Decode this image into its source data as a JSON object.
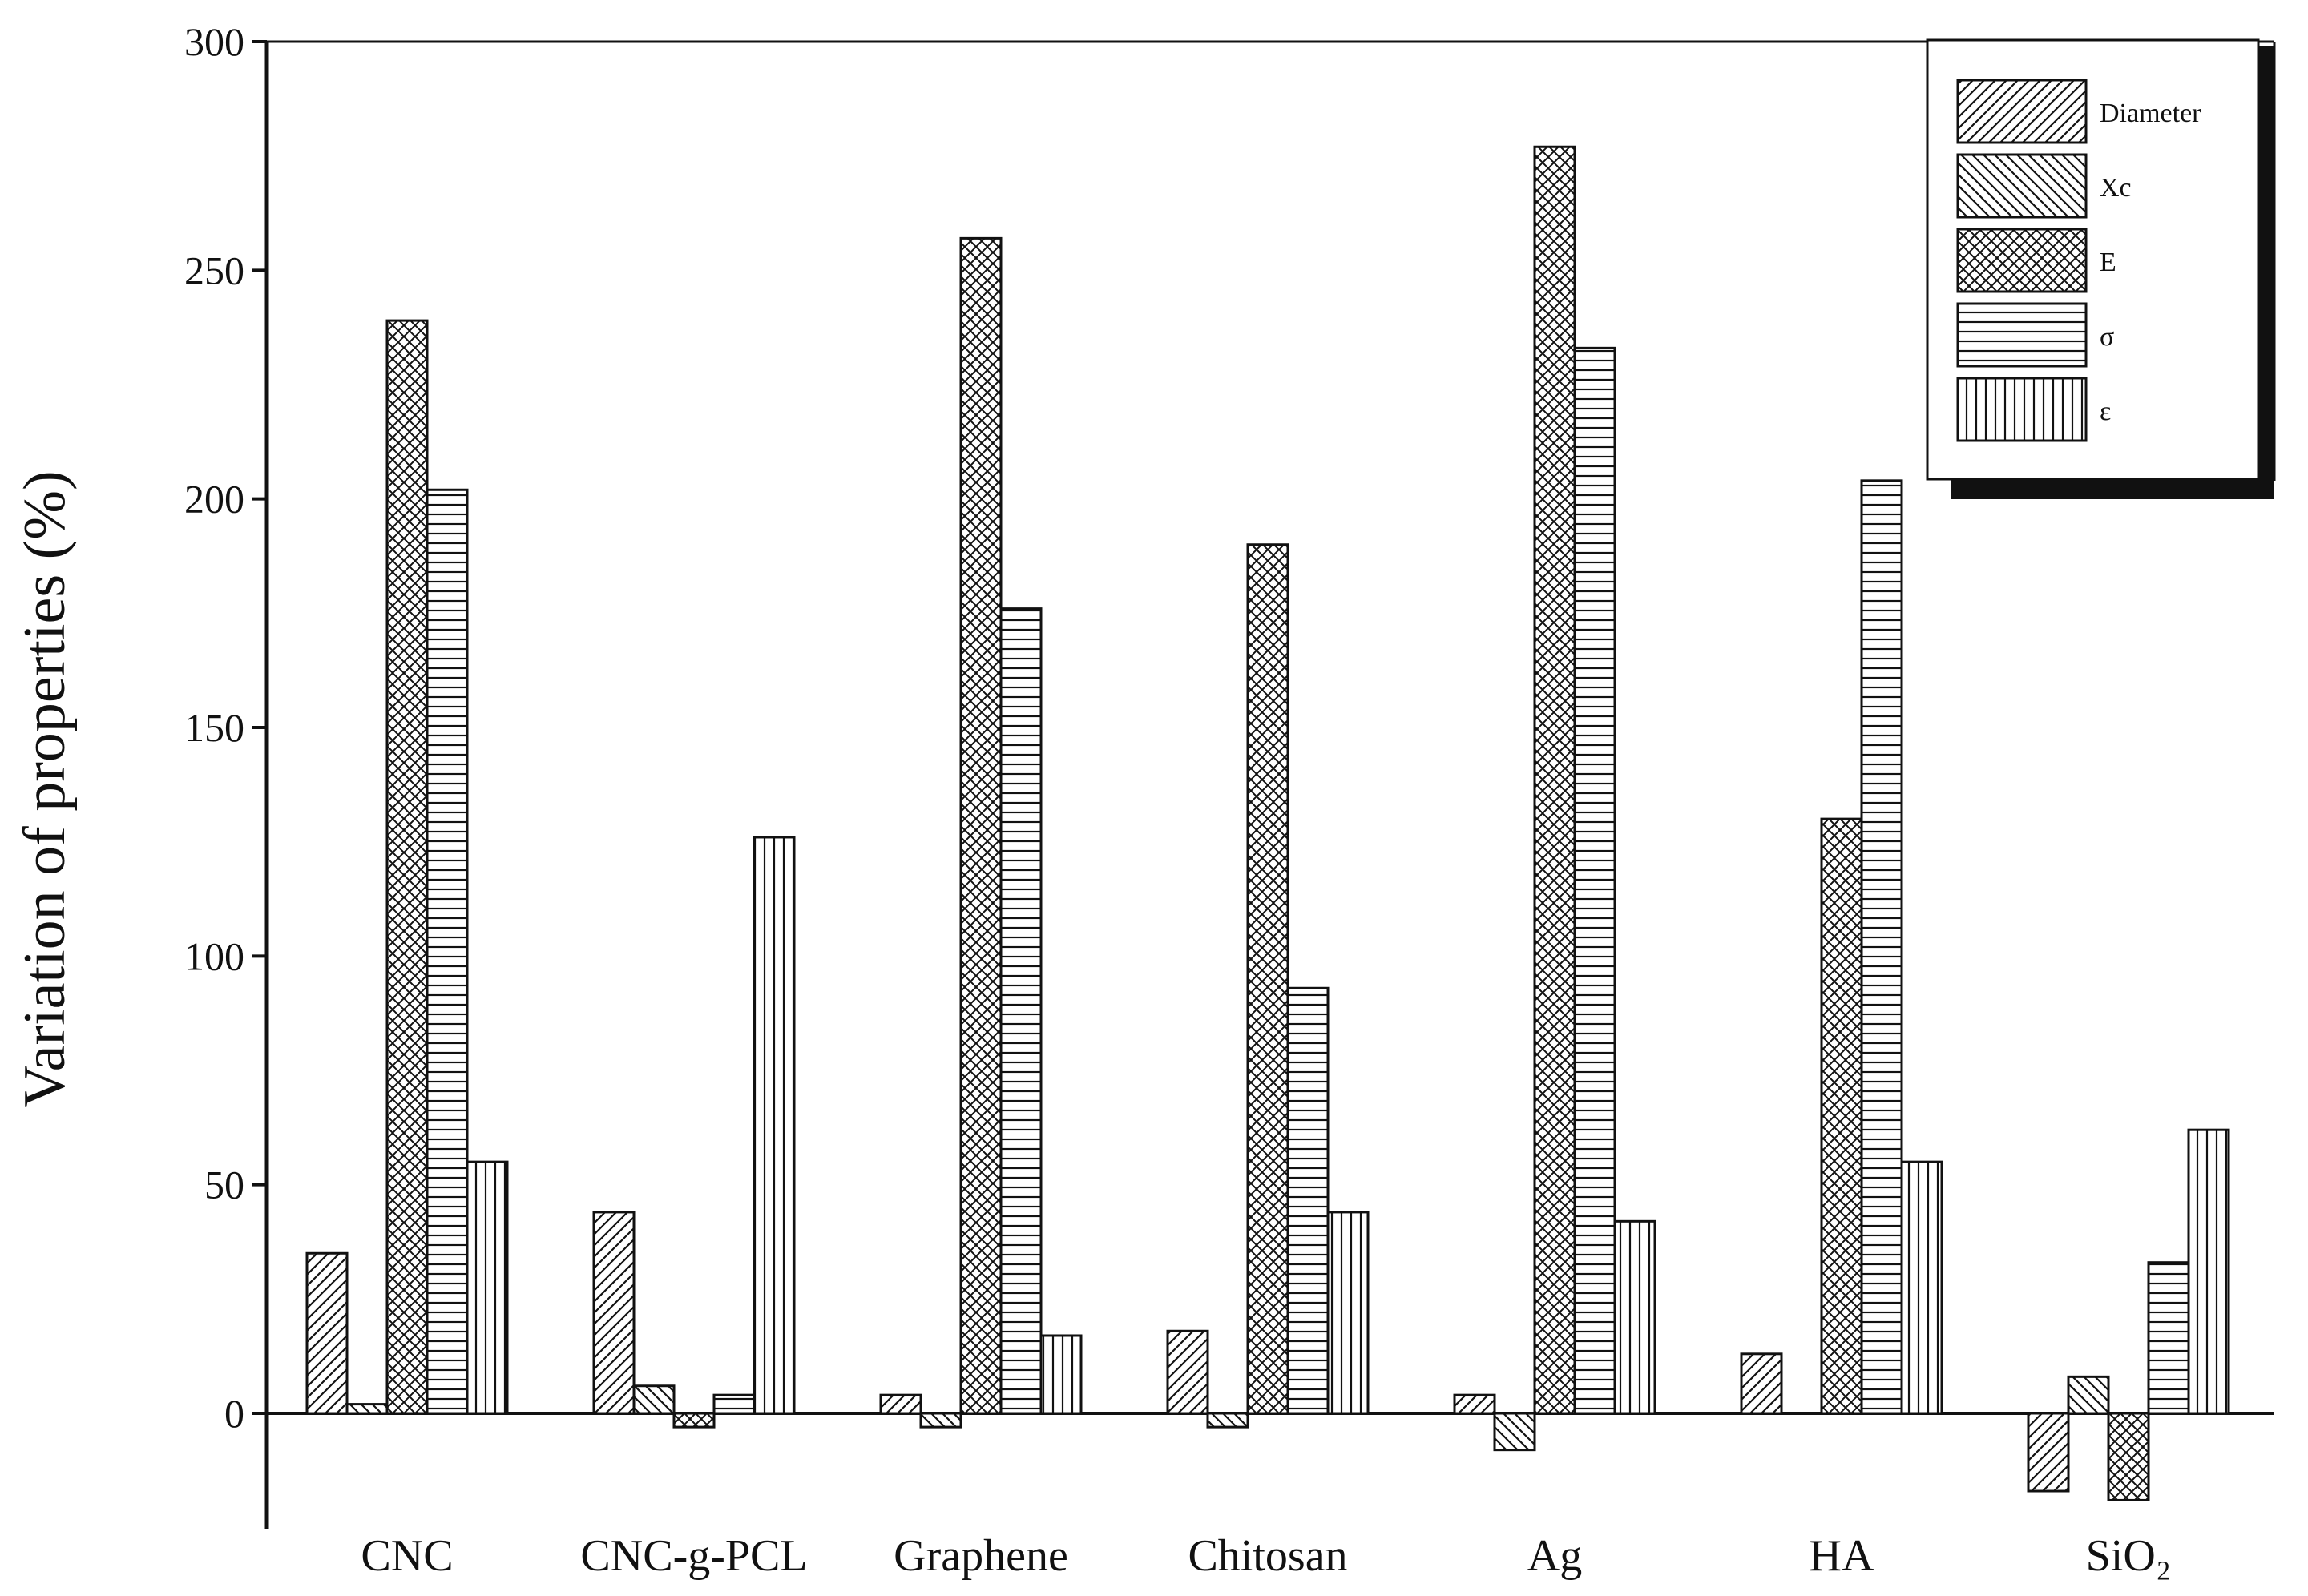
{
  "chart_data": {
    "type": "bar",
    "title": "",
    "xlabel": "",
    "ylabel": "Variation of properties (%)",
    "ylim": [
      -25,
      300
    ],
    "yticks": [
      0,
      50,
      100,
      150,
      200,
      250,
      300
    ],
    "grid": false,
    "legend_position": "top-right",
    "categories": [
      "CNC",
      "CNC-g-PCL",
      "Graphene",
      "Chitosan",
      "Ag",
      "HA",
      "SiO₂"
    ],
    "series": [
      {
        "name": "Diameter",
        "pattern": "diag-fwd",
        "values": [
          35,
          44,
          4,
          18,
          4,
          13,
          -17
        ]
      },
      {
        "name": "Xc",
        "pattern": "diag-back",
        "values": [
          2,
          6,
          -3,
          -3,
          -8,
          0,
          8
        ]
      },
      {
        "name": "E",
        "pattern": "crosshatch",
        "values": [
          239,
          -3,
          257,
          190,
          277,
          130,
          -19
        ]
      },
      {
        "name": "σ",
        "pattern": "horizontal",
        "values": [
          202,
          4,
          176,
          93,
          233,
          204,
          33
        ]
      },
      {
        "name": "ε",
        "pattern": "vertical",
        "values": [
          55,
          126,
          17,
          44,
          42,
          55,
          62
        ]
      }
    ],
    "colors": {
      "bar_stroke": "#111111",
      "bar_fill": "#ffffff",
      "axis": "#111111"
    }
  }
}
